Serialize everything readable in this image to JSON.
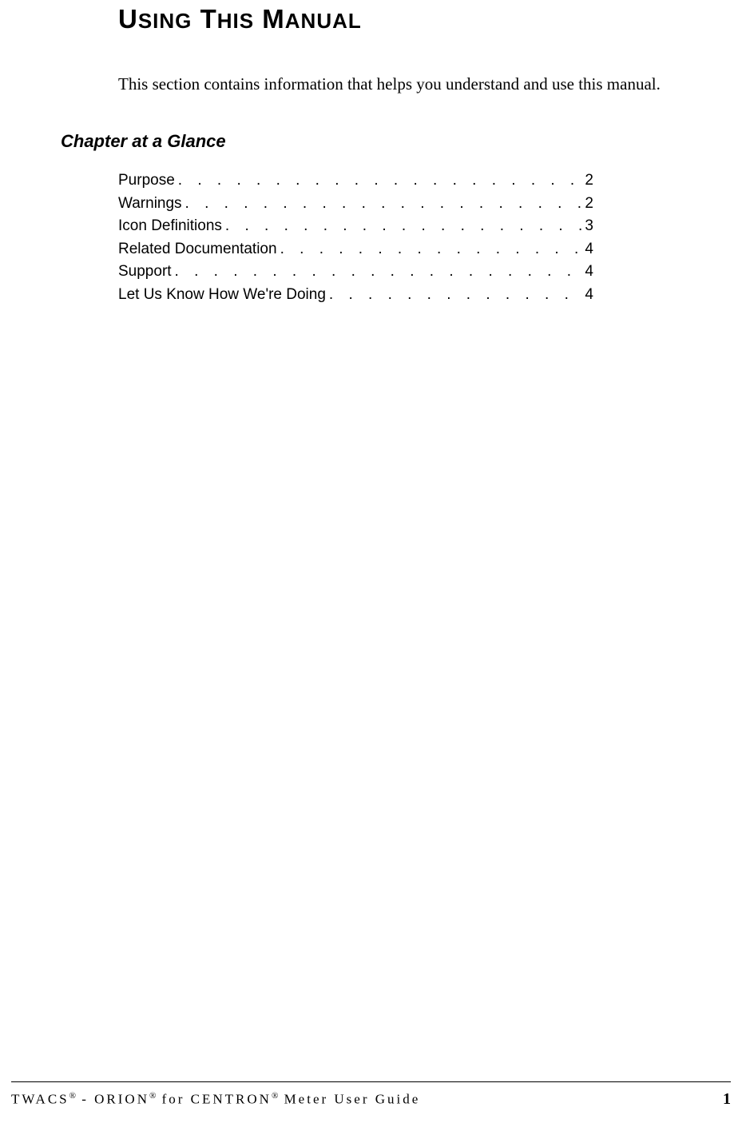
{
  "heading": {
    "title_parts": [
      {
        "cap": "U",
        "rest": "SING"
      },
      {
        "cap": "T",
        "rest": "HIS"
      },
      {
        "cap": "M",
        "rest": "ANUAL"
      }
    ],
    "title_fontsize_cap": 33,
    "title_fontsize_small": 26,
    "title_font_weight": "bold"
  },
  "intro": {
    "text": "This section contains information that helps you understand and use this manual.",
    "fontsize": 21,
    "font_family": "Georgia, 'Times New Roman', serif"
  },
  "section": {
    "heading": "Chapter at a Glance",
    "heading_fontsize": 22,
    "heading_style": "italic"
  },
  "toc": {
    "fontsize": 19,
    "font_family": "Verdana, Geneva, sans-serif",
    "dot_leader": " .  .  .  .  .  .  .  .  .  .  .  .  .  .  .  .  .  .  .  .  .  .  .  .  .  .  .  .  .  .  .  .  .  .",
    "entries": [
      {
        "label": "Purpose ",
        "page": "2"
      },
      {
        "label": "Warnings",
        "page": "2"
      },
      {
        "label": "Icon Definitions",
        "page": "3"
      },
      {
        "label": "Related Documentation ",
        "page": "4"
      },
      {
        "label": "Support ",
        "page": "4"
      },
      {
        "label": "Let Us Know How We're Doing ",
        "page": "4"
      }
    ]
  },
  "footer": {
    "parts": [
      {
        "text": "TWACS",
        "reg": true
      },
      {
        "text": " - ORION",
        "reg": true
      },
      {
        "text": " for CENTRON",
        "reg": true
      },
      {
        "text": " Meter User Guide",
        "reg": false
      }
    ],
    "page_number": "1",
    "fontsize": 17,
    "letter_spacing": 3,
    "border_color": "#000000"
  },
  "colors": {
    "background": "#ffffff",
    "text": "#000000"
  }
}
